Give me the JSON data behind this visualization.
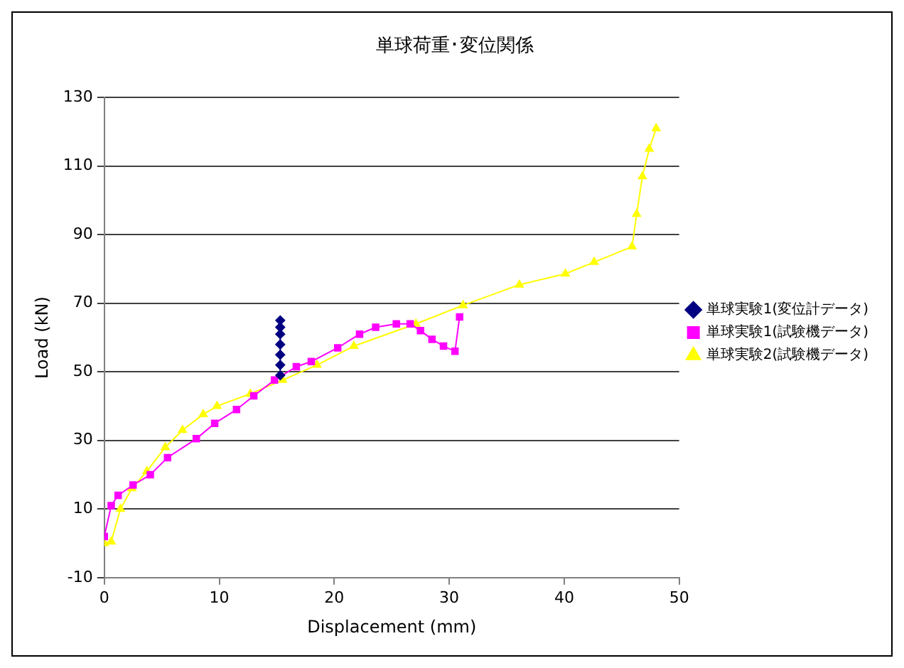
{
  "chart_data": {
    "type": "line",
    "title": "単球荷重･変位関係",
    "xlabel": "Displacement (mm)",
    "ylabel": "Load (kN)",
    "xlim": [
      0,
      50
    ],
    "xticks": [
      0,
      10,
      20,
      30,
      40,
      50
    ],
    "ylim": [
      -10,
      130
    ],
    "yticks": [
      -10,
      10,
      30,
      50,
      70,
      90,
      110,
      130
    ],
    "grid": "y",
    "legend": "right",
    "series": [
      {
        "name": "単球実験1(変位計データ)",
        "color": "#000080",
        "marker": "diamond",
        "x": [
          15.3,
          15.3,
          15.3,
          15.3,
          15.3,
          15.3,
          15.3
        ],
        "values": [
          49,
          52,
          55,
          58,
          61,
          63,
          65
        ]
      },
      {
        "name": "単球実験1(試験機データ)",
        "color": "#ff00ff",
        "marker": "square",
        "x": [
          0,
          0.6,
          1.2,
          2.5,
          4,
          5.5,
          8,
          9.6,
          11.5,
          13,
          14.8,
          16.7,
          18,
          20.3,
          22.2,
          23.6,
          25.4,
          26.6,
          27.5,
          28.5,
          29.5,
          30.5,
          30.9
        ],
        "values": [
          2,
          11,
          14,
          17,
          20,
          25,
          30.5,
          35,
          39,
          43,
          47.6,
          51.5,
          53,
          57,
          61,
          63,
          64,
          64,
          62,
          59.5,
          57.5,
          56,
          66
        ]
      },
      {
        "name": "単球実験2(試験機データ)",
        "color": "#ffff00",
        "marker": "triangle",
        "x": [
          0,
          0.6,
          1.4,
          2.4,
          3.7,
          5.3,
          6.8,
          8.6,
          9.8,
          12.7,
          15.5,
          18.5,
          21.7,
          27.1,
          31.2,
          36.1,
          40.1,
          42.6,
          45.9,
          46.3,
          46.8,
          47.4,
          48
        ],
        "values": [
          0,
          0.5,
          10,
          16,
          21,
          28,
          33,
          37.6,
          40,
          43.6,
          47.6,
          52,
          57.5,
          64,
          69.4,
          75.4,
          78.6,
          82,
          86.5,
          96,
          107,
          115,
          121
        ]
      }
    ]
  }
}
